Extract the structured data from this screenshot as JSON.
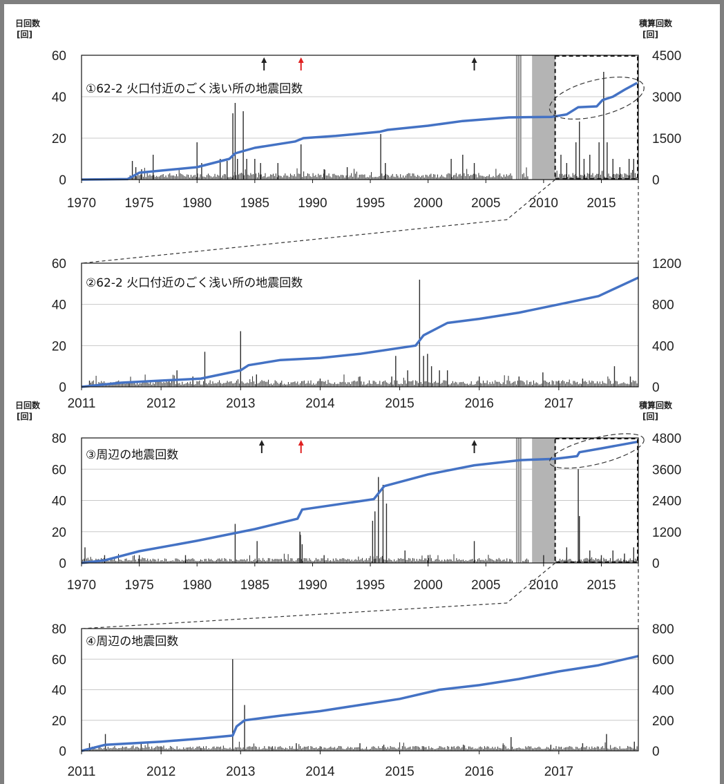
{
  "chart_data": [
    {
      "id": "p1",
      "type": "bar+line",
      "title": "①62-2 火口付近のごく浅い所の地震回数",
      "y_left_label": "日回数",
      "y_left_unit": "[回]",
      "y_right_label": "積算回数",
      "y_right_unit": "[回]",
      "xlim": [
        1970,
        2018.2
      ],
      "ylim_left": [
        0,
        60
      ],
      "ylim_right": [
        0,
        4500
      ],
      "x_ticks": [
        1970,
        1975,
        1980,
        1985,
        1990,
        1995,
        2000,
        2005,
        2010,
        2015
      ],
      "x_tick_labels": [
        "1970",
        "1975",
        "1980",
        "1985",
        "1990",
        "1995",
        "2000",
        "2005",
        "2010",
        "2015"
      ],
      "y_left_ticks": [
        "0",
        "20",
        "40",
        "60"
      ],
      "y_right_ticks": [
        "0",
        "1500",
        "3000",
        "4500"
      ],
      "arrows": [
        {
          "x": 1985.8,
          "color": "#222222"
        },
        {
          "x": 1989.0,
          "color": "#e02020"
        },
        {
          "x": 2004.0,
          "color": "#222222"
        }
      ],
      "gap_bands": [
        {
          "x0": 2007.6,
          "x1": 2008.1,
          "style": "hatch"
        },
        {
          "x0": 2009.0,
          "x1": 2011.0,
          "style": "solid"
        }
      ],
      "zoom_box": {
        "x0": 2011.0,
        "x1": 2018.2
      },
      "daily_spikes": [
        [
          1974.4,
          9
        ],
        [
          1974.7,
          6
        ],
        [
          1975.2,
          5
        ],
        [
          1976.2,
          12
        ],
        [
          1980.0,
          18
        ],
        [
          1980.4,
          8
        ],
        [
          1982.0,
          10
        ],
        [
          1982.6,
          9
        ],
        [
          1983.1,
          32
        ],
        [
          1983.3,
          37
        ],
        [
          1983.5,
          10
        ],
        [
          1984.0,
          33
        ],
        [
          1984.3,
          10
        ],
        [
          1985.0,
          10
        ],
        [
          1985.5,
          8
        ],
        [
          1987.0,
          8
        ],
        [
          1989.0,
          17
        ],
        [
          1991.0,
          5
        ],
        [
          1993.0,
          6
        ],
        [
          1995.9,
          22
        ],
        [
          1996.3,
          8
        ],
        [
          2002.0,
          10
        ],
        [
          2003.0,
          12
        ],
        [
          2004.0,
          8
        ],
        [
          2011.5,
          12
        ],
        [
          2012.0,
          8
        ],
        [
          2012.8,
          18
        ],
        [
          2013.1,
          28
        ],
        [
          2013.5,
          10
        ],
        [
          2014.0,
          12
        ],
        [
          2014.8,
          18
        ],
        [
          2015.2,
          52
        ],
        [
          2015.5,
          18
        ],
        [
          2016.0,
          10
        ],
        [
          2016.6,
          6
        ],
        [
          2017.4,
          10
        ],
        [
          2017.8,
          10
        ]
      ],
      "cumulative": [
        [
          1970,
          0
        ],
        [
          1974,
          20
        ],
        [
          1975,
          250
        ],
        [
          1980,
          450
        ],
        [
          1982.8,
          750
        ],
        [
          1983.3,
          950
        ],
        [
          1985,
          1150
        ],
        [
          1988.5,
          1380
        ],
        [
          1989.2,
          1500
        ],
        [
          1992,
          1580
        ],
        [
          1995.8,
          1730
        ],
        [
          1996.5,
          1800
        ],
        [
          2000,
          1950
        ],
        [
          2003,
          2120
        ],
        [
          2007,
          2250
        ],
        [
          2010.7,
          2270
        ],
        [
          2012,
          2360
        ],
        [
          2013,
          2620
        ],
        [
          2014.6,
          2650
        ],
        [
          2015.1,
          2880
        ],
        [
          2016,
          3000
        ],
        [
          2017,
          3250
        ],
        [
          2018.1,
          3500
        ]
      ],
      "trend_ellipse": {
        "cx": 2014.6,
        "cy_right": 2950,
        "rx_years": 4.2,
        "ry_right": 650,
        "rotate": -14
      }
    },
    {
      "id": "p2",
      "type": "bar+line",
      "title": "②62-2 火口付近のごく浅い所の地震回数",
      "xlim": [
        2011,
        2018
      ],
      "ylim_left": [
        0,
        60
      ],
      "ylim_right": [
        0,
        1200
      ],
      "x_ticks": [
        2011,
        2012,
        2013,
        2014,
        2015,
        2016,
        2017
      ],
      "x_tick_labels": [
        "2011",
        "2012",
        "2013",
        "2014",
        "2015",
        "2016",
        "2017"
      ],
      "y_left_ticks": [
        "0",
        "20",
        "40",
        "60"
      ],
      "y_right_ticks": [
        "0",
        "400",
        "800",
        "1200"
      ],
      "daily_spikes": [
        [
          2011.1,
          3
        ],
        [
          2011.6,
          2
        ],
        [
          2012.1,
          3
        ],
        [
          2012.2,
          8
        ],
        [
          2012.4,
          5
        ],
        [
          2012.55,
          17
        ],
        [
          2013.0,
          27
        ],
        [
          2013.2,
          6
        ],
        [
          2013.5,
          2
        ],
        [
          2014.0,
          4
        ],
        [
          2014.5,
          5
        ],
        [
          2014.9,
          5
        ],
        [
          2014.95,
          15
        ],
        [
          2015.1,
          8
        ],
        [
          2015.25,
          52
        ],
        [
          2015.3,
          15
        ],
        [
          2015.35,
          16
        ],
        [
          2015.4,
          10
        ],
        [
          2015.5,
          8
        ],
        [
          2015.6,
          8
        ],
        [
          2016.0,
          5
        ],
        [
          2016.5,
          5
        ],
        [
          2016.8,
          7
        ],
        [
          2017.0,
          3
        ],
        [
          2017.3,
          4
        ],
        [
          2017.7,
          10
        ],
        [
          2017.9,
          5
        ]
      ],
      "cumulative": [
        [
          2011,
          0
        ],
        [
          2011.5,
          40
        ],
        [
          2012,
          60
        ],
        [
          2012.5,
          80
        ],
        [
          2013,
          160
        ],
        [
          2013.1,
          210
        ],
        [
          2013.5,
          260
        ],
        [
          2014,
          280
        ],
        [
          2014.5,
          320
        ],
        [
          2015.2,
          400
        ],
        [
          2015.3,
          500
        ],
        [
          2015.6,
          620
        ],
        [
          2016,
          660
        ],
        [
          2016.5,
          720
        ],
        [
          2017,
          800
        ],
        [
          2017.5,
          880
        ],
        [
          2018,
          1060
        ]
      ]
    },
    {
      "id": "p3",
      "type": "bar+line",
      "title": "③周辺の地震回数",
      "y_left_label": "日回数",
      "y_left_unit": "[回]",
      "y_right_label": "積算回数",
      "y_right_unit": "[回]",
      "xlim": [
        1970,
        2018.2
      ],
      "ylim_left": [
        0,
        80
      ],
      "ylim_right": [
        0,
        4800
      ],
      "x_ticks": [
        1970,
        1975,
        1980,
        1985,
        1990,
        1995,
        2000,
        2005,
        2010,
        2015
      ],
      "x_tick_labels": [
        "1970",
        "1975",
        "1980",
        "1985",
        "1990",
        "1995",
        "2000",
        "2005",
        "2010",
        "2015"
      ],
      "y_left_ticks": [
        "0",
        "20",
        "40",
        "60",
        "80"
      ],
      "y_right_ticks": [
        "0",
        "1200",
        "2400",
        "3600",
        "4800"
      ],
      "arrows": [
        {
          "x": 1985.6,
          "color": "#222222"
        },
        {
          "x": 1989.0,
          "color": "#e02020"
        },
        {
          "x": 2004.0,
          "color": "#222222"
        }
      ],
      "gap_bands": [
        {
          "x0": 2007.6,
          "x1": 2008.1,
          "style": "hatch"
        },
        {
          "x0": 2009.0,
          "x1": 2011.0,
          "style": "solid"
        }
      ],
      "zoom_box": {
        "x0": 2011.0,
        "x1": 2018.2
      },
      "daily_spikes": [
        [
          1970.3,
          10
        ],
        [
          1972.0,
          5
        ],
        [
          1975.0,
          5
        ],
        [
          1979.0,
          5
        ],
        [
          1983.3,
          25
        ],
        [
          1985.2,
          14
        ],
        [
          1988.9,
          20
        ],
        [
          1988.95,
          18
        ],
        [
          1989.1,
          12
        ],
        [
          1991.0,
          5
        ],
        [
          1995.2,
          27
        ],
        [
          1995.4,
          33
        ],
        [
          1995.7,
          55
        ],
        [
          1996.1,
          50
        ],
        [
          1996.4,
          38
        ],
        [
          1998.0,
          8
        ],
        [
          2000.0,
          5
        ],
        [
          2004.0,
          14
        ],
        [
          2010.0,
          5
        ],
        [
          2012.0,
          10
        ],
        [
          2013.0,
          60
        ],
        [
          2013.1,
          30
        ],
        [
          2014.0,
          8
        ],
        [
          2015.0,
          5
        ],
        [
          2016.0,
          8
        ],
        [
          2017.0,
          6
        ],
        [
          2017.8,
          10
        ]
      ],
      "cumulative": [
        [
          1970,
          0
        ],
        [
          1972,
          100
        ],
        [
          1975,
          450
        ],
        [
          1980,
          850
        ],
        [
          1985,
          1300
        ],
        [
          1988.7,
          1700
        ],
        [
          1989.1,
          2050
        ],
        [
          1995.3,
          2450
        ],
        [
          1996.2,
          2950
        ],
        [
          2000,
          3400
        ],
        [
          2004,
          3750
        ],
        [
          2008,
          3950
        ],
        [
          2011,
          4000
        ],
        [
          2012.9,
          4100
        ],
        [
          2013.1,
          4250
        ],
        [
          2015,
          4400
        ],
        [
          2018.1,
          4650
        ]
      ],
      "trend_ellipse": {
        "cx": 2014.6,
        "cy_right": 4300,
        "rx_years": 4.2,
        "ry_right": 500,
        "rotate": -14
      }
    },
    {
      "id": "p4",
      "type": "bar+line",
      "title": "④周辺の地震回数",
      "xlim": [
        2011,
        2018
      ],
      "ylim_left": [
        0,
        80
      ],
      "ylim_right": [
        0,
        800
      ],
      "x_ticks": [
        2011,
        2012,
        2013,
        2014,
        2015,
        2016,
        2017
      ],
      "x_tick_labels": [
        "2011",
        "2012",
        "2013",
        "2014",
        "2015",
        "2016",
        "2017"
      ],
      "y_left_ticks": [
        "0",
        "20",
        "40",
        "60",
        "80"
      ],
      "y_right_ticks": [
        "0",
        "200",
        "400",
        "600",
        "800"
      ],
      "daily_spikes": [
        [
          2011.1,
          5
        ],
        [
          2011.3,
          11
        ],
        [
          2011.75,
          5
        ],
        [
          2012.0,
          3
        ],
        [
          2012.5,
          2
        ],
        [
          2012.9,
          60
        ],
        [
          2013.05,
          30
        ],
        [
          2013.4,
          3
        ],
        [
          2013.7,
          5
        ],
        [
          2014.0,
          3
        ],
        [
          2014.5,
          5
        ],
        [
          2014.8,
          4
        ],
        [
          2015.3,
          3
        ],
        [
          2015.8,
          4
        ],
        [
          2016.3,
          4
        ],
        [
          2016.4,
          9
        ],
        [
          2016.9,
          4
        ],
        [
          2017.3,
          5
        ],
        [
          2017.6,
          11
        ],
        [
          2017.95,
          6
        ]
      ],
      "cumulative": [
        [
          2011,
          0
        ],
        [
          2011.3,
          40
        ],
        [
          2012,
          60
        ],
        [
          2012.5,
          80
        ],
        [
          2012.9,
          100
        ],
        [
          2012.95,
          160
        ],
        [
          2013.05,
          200
        ],
        [
          2013.5,
          230
        ],
        [
          2014,
          260
        ],
        [
          2014.5,
          300
        ],
        [
          2015,
          340
        ],
        [
          2015.5,
          400
        ],
        [
          2016,
          430
        ],
        [
          2016.5,
          470
        ],
        [
          2017,
          520
        ],
        [
          2017.5,
          560
        ],
        [
          2018,
          620
        ]
      ]
    }
  ],
  "colors": {
    "cumulative_line": "#4472c4",
    "spike": "#2a2a2a",
    "gap_band": "#b4b4b4",
    "arrow_black": "#222222",
    "arrow_red": "#e02020"
  }
}
